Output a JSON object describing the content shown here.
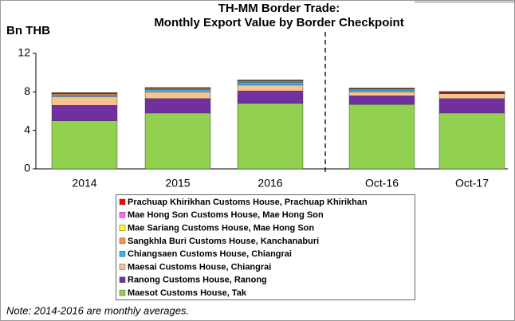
{
  "chart_data": {
    "type": "stacked_bar",
    "title": [
      "TH-MM Border Trade:",
      "Monthly Export Value by Border Checkpoint"
    ],
    "y_label": "Bn THB",
    "note": "Note: 2014-2016 are monthly averages.",
    "categories": [
      "2014",
      "2015",
      "2016",
      "Oct-16",
      "Oct-17"
    ],
    "ylim": [
      0,
      12
    ],
    "yticks": [
      0,
      4,
      8,
      12
    ],
    "series": [
      {
        "name": "Maesot Customs House, Tak",
        "color": "#92d050",
        "values": [
          5.0,
          5.8,
          6.8,
          6.7,
          5.8
        ]
      },
      {
        "name": "Ranong Customs House, Ranong",
        "color": "#7030a0",
        "values": [
          1.6,
          1.5,
          1.3,
          0.9,
          1.5
        ]
      },
      {
        "name": "Maesai Customs House, Chiangrai",
        "color": "#fac090",
        "values": [
          0.9,
          0.7,
          0.6,
          0.4,
          0.5
        ]
      },
      {
        "name": "Chiangsaen Customs House, Chiangrai",
        "color": "#31b6e5",
        "values": [
          0.2,
          0.25,
          0.3,
          0.2,
          0.05
        ]
      },
      {
        "name": "Sangkhla Buri Customs House, Kanchanaburi",
        "color": "#f79646",
        "values": [
          0.1,
          0.1,
          0.1,
          0.1,
          0.05
        ]
      },
      {
        "name": "Mae Sariang Customs House, Mae Hong Son",
        "color": "#ffff00",
        "values": [
          0.05,
          0.03,
          0.05,
          0.03,
          0.02
        ]
      },
      {
        "name": "Mae Hong Son Customs House, Mae Hong Son",
        "color": "#ff66ff",
        "values": [
          0.02,
          0.02,
          0.05,
          0.02,
          0.02
        ]
      },
      {
        "name": "Prachuap Khirikhan Customs House, Prachuap Khirikhan",
        "color": "#ff0000",
        "values": [
          0.05,
          0.05,
          0.05,
          0.05,
          0.1
        ]
      }
    ]
  }
}
